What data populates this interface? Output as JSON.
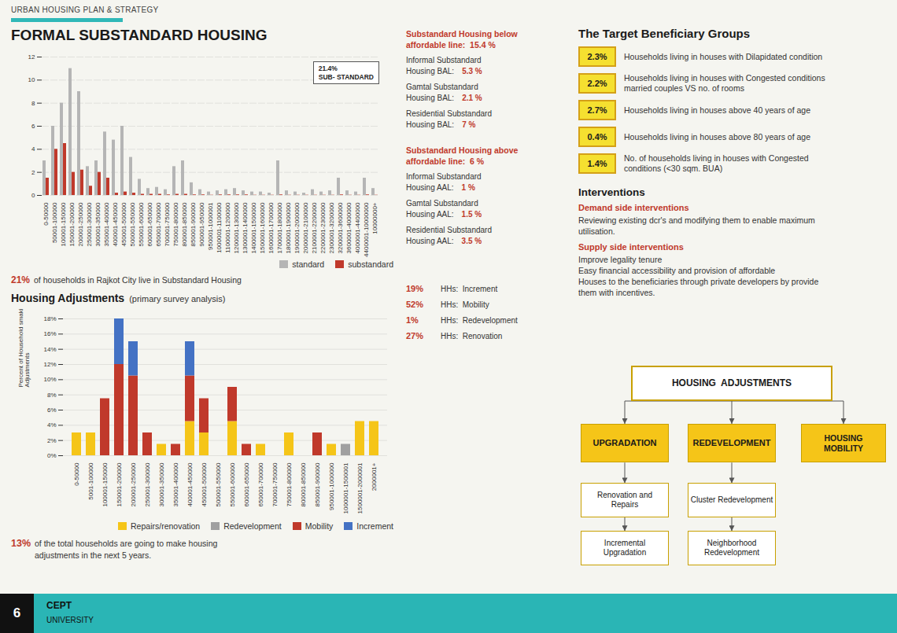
{
  "chart_data": [
    {
      "type": "bar",
      "title": "FORMAL SUBSTANDARD HOUSING",
      "categories": [
        "0-50000",
        "50001-100000",
        "100001-150000",
        "150001-200000",
        "200001-250000",
        "250001-300000",
        "300001-350000",
        "350001-400000",
        "400001-450000",
        "450001-500000",
        "500001-550000",
        "550001-600000",
        "600001-650000",
        "650001-700000",
        "700001-750000",
        "750001-800000",
        "800001-850000",
        "850001-900000",
        "900001-950000",
        "950001-1000001",
        "1000001-1100000",
        "1100001-1200000",
        "1200001-1300000",
        "1300001-1400000",
        "1400001-1500000",
        "1500001-1600000",
        "1600001-1700000",
        "1700001-1800000",
        "1800001-1900000",
        "1900001-2000000",
        "2000001-2100000",
        "2100001-2200000",
        "2200001-2300000",
        "2300001-3200000",
        "3200001-3600000",
        "3600001-4000000",
        "4000001-4400000",
        "4400001-10000000",
        "10000000+"
      ],
      "series": [
        {
          "name": "standard",
          "color": "#b5b5b5",
          "values": [
            3,
            6,
            8,
            11,
            9,
            2.5,
            3,
            5.5,
            4.8,
            6,
            3.3,
            1.4,
            0.6,
            0.7,
            0.5,
            2.5,
            3,
            1.1,
            0.5,
            0.3,
            0.4,
            0.5,
            0.6,
            0.4,
            0.3,
            0.3,
            0.2,
            3,
            0.4,
            0.3,
            0.2,
            0.5,
            0.3,
            0.4,
            1.5,
            0.4,
            0.3,
            1.5,
            0.6
          ]
        },
        {
          "name": "substandard",
          "color": "#c0392b",
          "values": [
            1.5,
            4,
            4.5,
            2,
            2.2,
            0.8,
            2,
            1.5,
            0.2,
            0.3,
            0.2,
            0.1,
            0.1,
            0.1,
            0.05,
            0.1,
            0.1,
            0.05,
            0.05,
            0.02,
            0.05,
            0.05,
            0.05,
            0.05,
            0.02,
            0.02,
            0.02,
            0.05,
            0.02,
            0.02,
            0.02,
            0.02,
            0.02,
            0.02,
            0.05,
            0.02,
            0.02,
            0.05,
            0.02
          ]
        }
      ],
      "ylim": [
        0,
        12
      ],
      "yticks": [
        0,
        2,
        4,
        6,
        8,
        10,
        12
      ],
      "grid": true,
      "legend": "lower right",
      "annotations": [
        "URBAN HOUSING PLAN & STRATEGY",
        "21.4%\nSUB- STANDARD",
        "21%",
        "of households in Rajkot City live in Substandard Housing",
        "Substandard Housing below\naffordable line:  15.4 %",
        "Informal Substandard\nHousing BAL:",
        "5.3 %",
        "Gamtal Substandard\nHousing BAL:",
        "2.1 %",
        "Residential Substandard\nHousing BAL:",
        "7 %",
        "Substandard Housing above\naffordable line:  6 %",
        "Informal Substandard\nHousing AAL:",
        "1 %",
        "Gamtal Substandard\nHousing AAL:",
        "1.5 %",
        "Residential Substandard\nHousing AAL:",
        "3.5 %",
        "The Target Beneficiary Groups",
        "2.3%",
        "Households living in houses with Dilapidated condition",
        "2.2%",
        "Households living in houses with Congested conditions\nmarried couples VS no. of rooms",
        "2.7%",
        "Households living in houses above 40 years of age",
        "0.4%",
        "Households living in houses above 80 years of age",
        "1.4%",
        "No. of households living in houses with Congested\nconditions (<30 sqm. BUA)",
        "Interventions",
        "Demand side interventions",
        "Reviewing existing dcr's and modifying them to enable maximum\nutilisation.",
        "Supply side interventions",
        "Improve legality tenure\nEasy financial accessibility and provision of affordable\nHouses to the beneficiaries through private developers by provide\nthem with incentives.",
        "6",
        "CEPT",
        "UNIVERSITY"
      ]
    },
    {
      "type": "bar",
      "title": "Housing Adjustments",
      "subtitle": "(primary survey analysis)",
      "ylabel": "Percent of Household smaking Housing\nAdjustments",
      "categories": [
        "0-50000",
        "5001-100000",
        "100001-150000",
        "150001-200000",
        "200001-250000",
        "250001-300000",
        "300001-350000",
        "350001-400000",
        "400001-450000",
        "450001-500000",
        "500001-550000",
        "550001-600000",
        "600001-650000",
        "650001-700000",
        "700001-750000",
        "750001-800000",
        "800001-850000",
        "850001-900000",
        "950001-1000000",
        "1000001-1500001",
        "1500001-2000001",
        "2000001+"
      ],
      "series": [
        {
          "name": "Repairs/renovation",
          "color": "#f5c518",
          "values": [
            3,
            3,
            0,
            0,
            0,
            0,
            1.5,
            0,
            4.5,
            3,
            0,
            4.5,
            0,
            1.5,
            0,
            3,
            0,
            0,
            1.5,
            0,
            4.5,
            4.5
          ]
        },
        {
          "name": "Redevelopment",
          "color": "#a0a0a0",
          "values": [
            0,
            0,
            0,
            0,
            0,
            0,
            0,
            0,
            0,
            0,
            0,
            0,
            0,
            0,
            0,
            0,
            0,
            0,
            0,
            1.5,
            0,
            0
          ]
        },
        {
          "name": "Mobility",
          "color": "#c0392b",
          "values": [
            0,
            0,
            7.5,
            12,
            10.5,
            3,
            0,
            1.5,
            6,
            4.5,
            0,
            4.5,
            1.5,
            0,
            0,
            0,
            0,
            3,
            0,
            0,
            0,
            0
          ]
        },
        {
          "name": "Increment",
          "color": "#4472c4",
          "values": [
            0,
            0,
            0,
            6,
            4.5,
            0,
            0,
            0,
            4.5,
            0,
            0,
            0,
            0,
            0,
            0,
            0,
            0,
            0,
            0,
            0,
            0,
            0
          ]
        }
      ],
      "stacked": true,
      "ylim": [
        0,
        18
      ],
      "yticks": [
        {
          "value": 0,
          "label": "0%"
        },
        {
          "value": 2,
          "label": "2%"
        },
        {
          "value": 4,
          "label": "4%"
        },
        {
          "value": 6,
          "label": "6%"
        },
        {
          "value": 8,
          "label": "8%"
        },
        {
          "value": 10,
          "label": "10%"
        },
        {
          "value": 12,
          "label": "12%"
        },
        {
          "value": 14,
          "label": "14%"
        },
        {
          "value": 16,
          "label": "16%"
        },
        {
          "value": 18,
          "label": "18%"
        }
      ],
      "grid": true,
      "legend": "lower right",
      "annotations": [
        "13%",
        "of the total households are going to make housing\nadjustments in the next 5 years.",
        "19%",
        "HHs:  Increment",
        "52%",
        "HHs:  Mobility",
        "1%",
        "HHs:  Redevelopment",
        "27%",
        "HHs:  Renovation",
        "HOUSING  ADJUSTMENTS",
        "UPGRADATION",
        "REDEVELOPMENT",
        "HOUSING\nMOBILITY",
        "Renovation and\nRepairs",
        "Incremental\nUpgradation",
        "Cluster Redevelopment",
        "Neighborhood\nRedevelopment"
      ]
    }
  ]
}
